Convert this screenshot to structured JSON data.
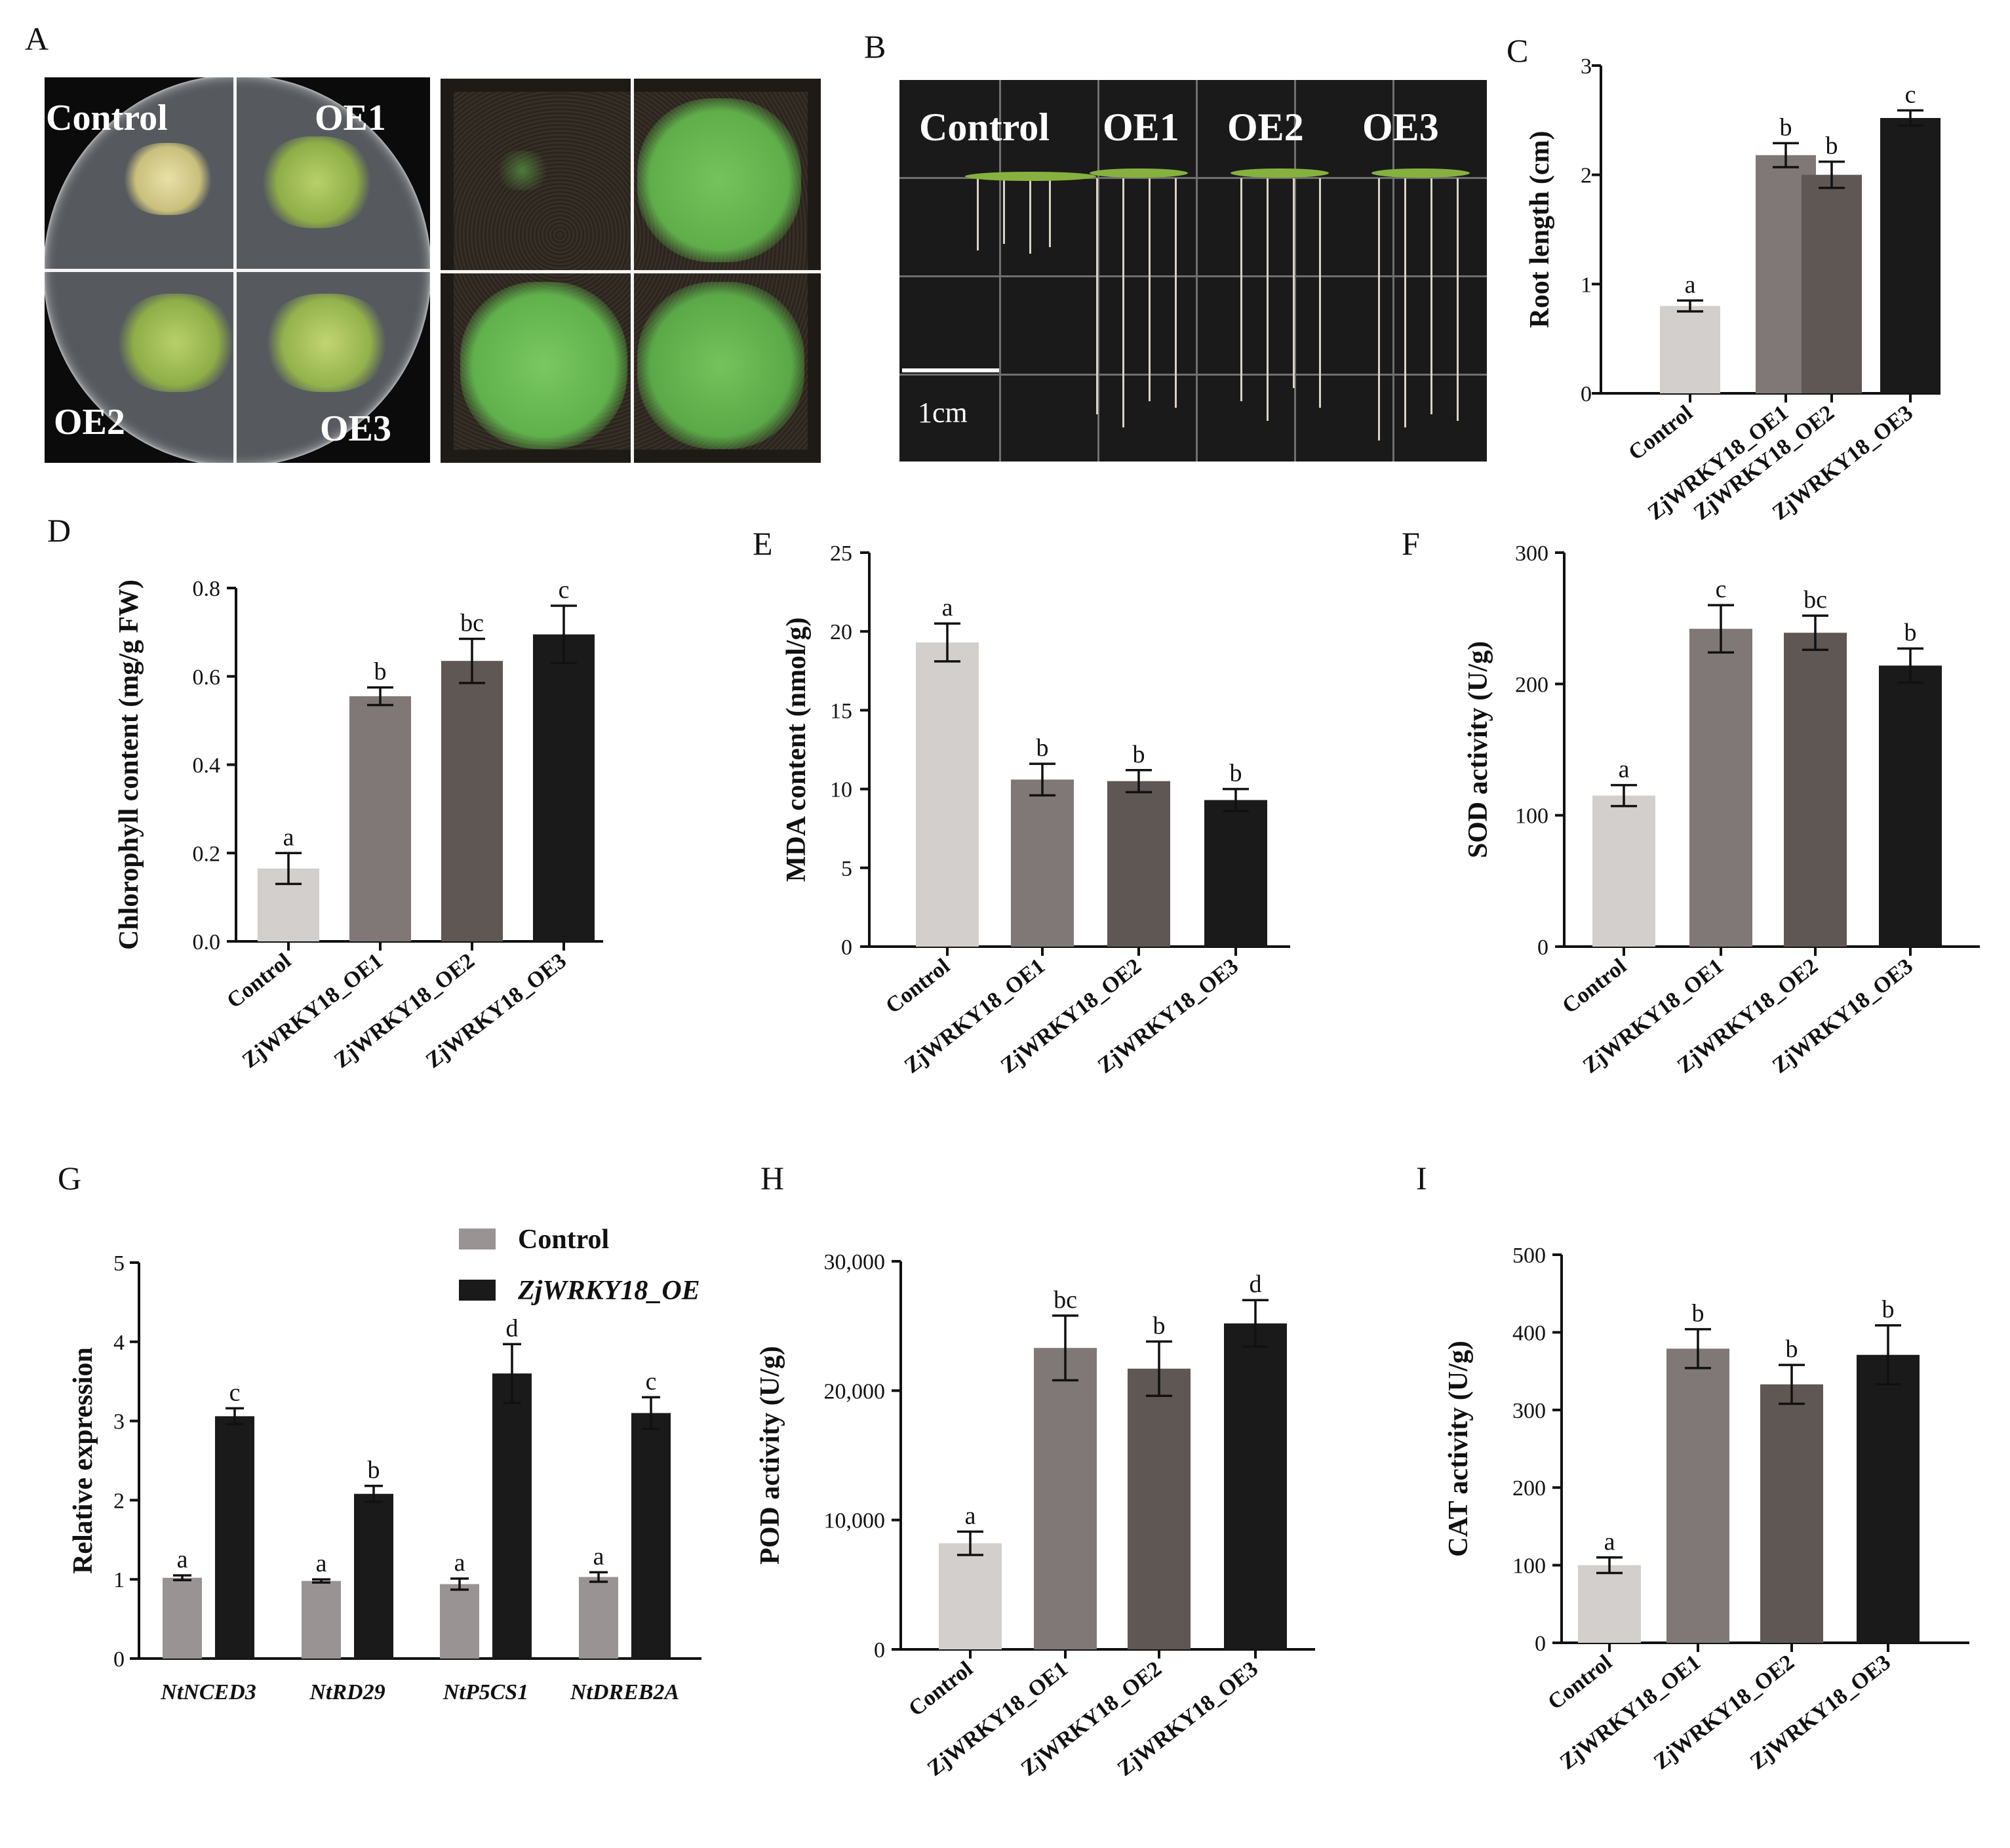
{
  "panel_labels": [
    "A",
    "B",
    "C",
    "D",
    "E",
    "F",
    "G",
    "H",
    "I"
  ],
  "photo_A": {
    "labels": [
      "Control",
      "OE1",
      "OE2",
      "OE3"
    ]
  },
  "photo_B": {
    "labels": [
      "Control",
      "OE1",
      "OE2",
      "OE3"
    ],
    "scale_bar": "1cm"
  },
  "colors": {
    "control": "#d3cfcc",
    "oe1": "#7f7876",
    "oe2": "#5f5754",
    "oe3": "#1a1a1a",
    "g_control": "#9a9394",
    "g_oe": "#1a1a1a"
  },
  "chart_data": [
    {
      "panel": "C",
      "type": "bar",
      "categories": [
        "Control",
        "ZjWRKY18_OE1",
        "ZjWRKY18_OE2",
        "ZjWRKY18_OE3"
      ],
      "values": [
        0.8,
        2.18,
        2.0,
        2.52
      ],
      "errors": [
        0.05,
        0.11,
        0.12,
        0.07
      ],
      "sig": [
        "a",
        "b",
        "b",
        "c"
      ],
      "ylabel": "Root length (cm)",
      "ylim": [
        0,
        3
      ],
      "yticks": [
        {
          "v": 0,
          "t": "0"
        },
        {
          "v": 1,
          "t": "1"
        },
        {
          "v": 2,
          "t": "2"
        },
        {
          "v": 3,
          "t": "3"
        }
      ]
    },
    {
      "panel": "D",
      "type": "bar",
      "categories": [
        "Control",
        "ZjWRKY18_OE1",
        "ZjWRKY18_OE2",
        "ZjWRKY18_OE3"
      ],
      "values": [
        0.165,
        0.555,
        0.635,
        0.695
      ],
      "errors": [
        0.035,
        0.02,
        0.05,
        0.065
      ],
      "sig": [
        "a",
        "b",
        "bc",
        "c"
      ],
      "ylabel": "Chlorophyll content (mg/g FW)",
      "ylim": [
        0,
        0.8
      ],
      "yticks": [
        {
          "v": 0,
          "t": "0.0"
        },
        {
          "v": 0.2,
          "t": "0.2"
        },
        {
          "v": 0.4,
          "t": "0.4"
        },
        {
          "v": 0.6,
          "t": "0.6"
        },
        {
          "v": 0.8,
          "t": "0.8"
        }
      ]
    },
    {
      "panel": "E",
      "type": "bar",
      "categories": [
        "Control",
        "ZjWRKY18_OE1",
        "ZjWRKY18_OE2",
        "ZjWRKY18_OE3"
      ],
      "values": [
        19.3,
        10.6,
        10.5,
        9.3
      ],
      "errors": [
        1.2,
        1.0,
        0.7,
        0.7
      ],
      "sig": [
        "a",
        "b",
        "b",
        "b"
      ],
      "ylabel": "MDA content (nmol/g)",
      "ylim": [
        0,
        25
      ],
      "yticks": [
        {
          "v": 0,
          "t": "0"
        },
        {
          "v": 5,
          "t": "5"
        },
        {
          "v": 10,
          "t": "10"
        },
        {
          "v": 15,
          "t": "15"
        },
        {
          "v": 20,
          "t": "20"
        },
        {
          "v": 25,
          "t": "25"
        }
      ]
    },
    {
      "panel": "F",
      "type": "bar",
      "categories": [
        "Control",
        "ZjWRKY18_OE1",
        "ZjWRKY18_OE2",
        "ZjWRKY18_OE3"
      ],
      "values": [
        115,
        242,
        239,
        214
      ],
      "errors": [
        8,
        18,
        13,
        13
      ],
      "sig": [
        "a",
        "c",
        "bc",
        "b"
      ],
      "ylabel": "SOD activity (U/g)",
      "ylim": [
        0,
        300
      ],
      "yticks": [
        {
          "v": 0,
          "t": "0"
        },
        {
          "v": 100,
          "t": "100"
        },
        {
          "v": 200,
          "t": "200"
        },
        {
          "v": 300,
          "t": "300"
        }
      ]
    },
    {
      "panel": "G",
      "type": "bar",
      "categories": [
        "NtNCED3",
        "NtRD29",
        "NtP5CS1",
        "NtDREB2A"
      ],
      "series": [
        {
          "name": "Control",
          "values": [
            1.02,
            0.98,
            0.94,
            1.03
          ],
          "errors": [
            0.03,
            0.02,
            0.07,
            0.06
          ],
          "sig": [
            "a",
            "a",
            "a",
            "a"
          ]
        },
        {
          "name": "ZjWRKY18_OE",
          "values": [
            3.06,
            2.08,
            3.6,
            3.1
          ],
          "errors": [
            0.1,
            0.1,
            0.37,
            0.2
          ],
          "sig": [
            "c",
            "b",
            "d",
            "c"
          ]
        }
      ],
      "ylabel": "Relative expression",
      "ylim": [
        0,
        5
      ],
      "yticks": [
        {
          "v": 0,
          "t": "0"
        },
        {
          "v": 1,
          "t": "1"
        },
        {
          "v": 2,
          "t": "2"
        },
        {
          "v": 3,
          "t": "3"
        },
        {
          "v": 4,
          "t": "4"
        },
        {
          "v": 5,
          "t": "5"
        }
      ],
      "legend": "top-right"
    },
    {
      "panel": "H",
      "type": "bar",
      "categories": [
        "Control",
        "ZjWRKY18_OE1",
        "ZjWRKY18_OE2",
        "ZjWRKY18_OE3"
      ],
      "values": [
        8200,
        23300,
        21700,
        25200
      ],
      "errors": [
        900,
        2500,
        2100,
        1800
      ],
      "sig": [
        "a",
        "bc",
        "b",
        "d"
      ],
      "ylabel": "POD activity (U/g)",
      "ylim": [
        0,
        30000
      ],
      "yticks": [
        {
          "v": 0,
          "t": "0"
        },
        {
          "v": 10000,
          "t": "10,000"
        },
        {
          "v": 20000,
          "t": "20,000"
        },
        {
          "v": 30000,
          "t": "30,000"
        }
      ]
    },
    {
      "panel": "I",
      "type": "bar",
      "categories": [
        "Control",
        "ZjWRKY18_OE1",
        "ZjWRKY18_OE2",
        "ZjWRKY18_OE3"
      ],
      "values": [
        100,
        379,
        333,
        371
      ],
      "errors": [
        10,
        25,
        25,
        38
      ],
      "sig": [
        "a",
        "b",
        "b",
        "b"
      ],
      "ylabel": "CAT activity (U/g)",
      "ylim": [
        0,
        500
      ],
      "yticks": [
        {
          "v": 0,
          "t": "0"
        },
        {
          "v": 100,
          "t": "100"
        },
        {
          "v": 200,
          "t": "200"
        },
        {
          "v": 300,
          "t": "300"
        },
        {
          "v": 400,
          "t": "400"
        },
        {
          "v": 500,
          "t": "500"
        }
      ]
    }
  ]
}
